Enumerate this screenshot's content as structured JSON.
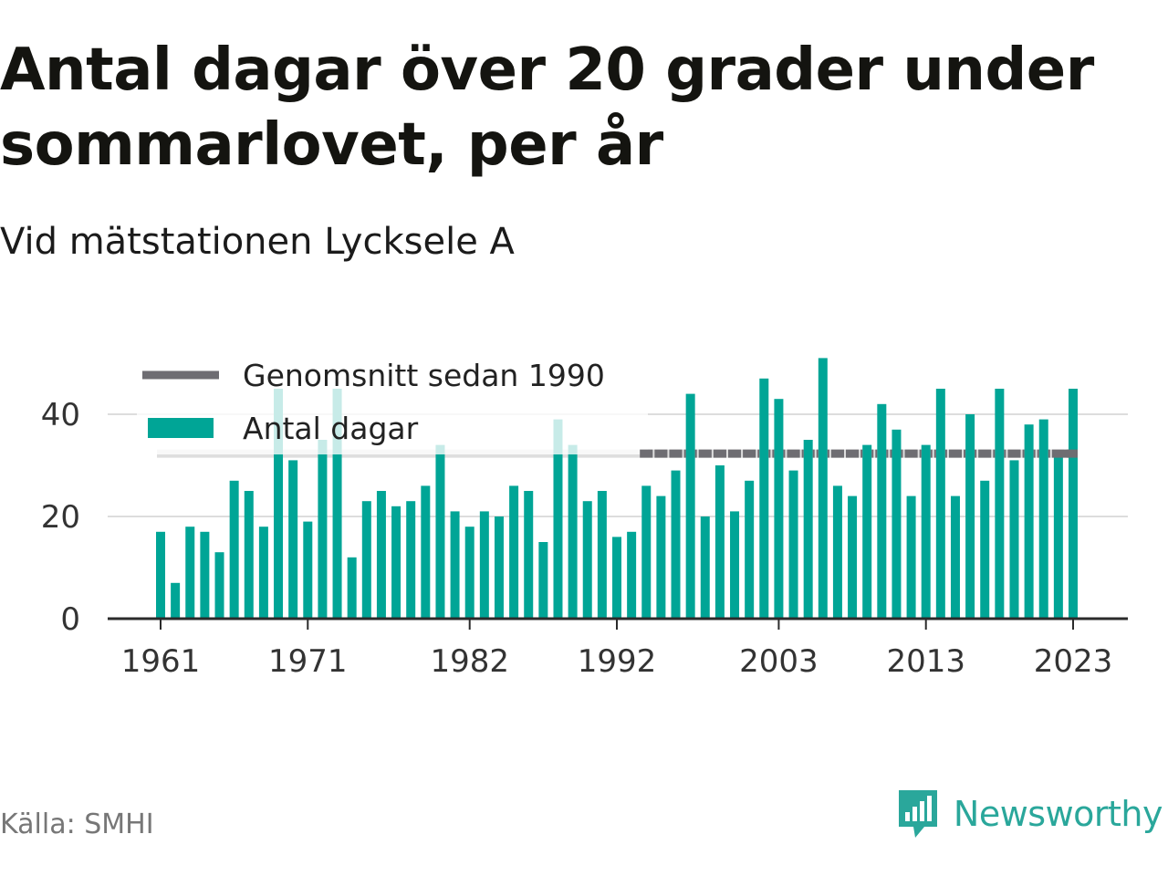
{
  "title": "Antal dagar över 20 grader under sommarlovet, per år",
  "subtitle": "Vid mätstationen Lycksele A",
  "source": "Källa: SMHI",
  "brand": {
    "name": "Newsworthy",
    "logo_icon": "newsworthy-logo-icon",
    "color": "#2aa79b"
  },
  "chart_data": {
    "type": "bar",
    "x_start": 1961,
    "x_end": 2023,
    "x_tick_labels": [
      "1961",
      "1971",
      "1982",
      "1992",
      "2003",
      "2013",
      "2023"
    ],
    "y_tick_labels": [
      "0",
      "20",
      "40"
    ],
    "ylim": [
      0,
      52
    ],
    "grid": true,
    "legend_position": "top-left",
    "series": [
      {
        "name": "Antal dagar",
        "color": "#00a596",
        "categories": [
          "1961",
          "1962",
          "1963",
          "1964",
          "1965",
          "1966",
          "1967",
          "1968",
          "1969",
          "1970",
          "1971",
          "1972",
          "1973",
          "1974",
          "1975",
          "1976",
          "1977",
          "1978",
          "1979",
          "1980",
          "1981",
          "1982",
          "1983",
          "1984",
          "1985",
          "1986",
          "1987",
          "1988",
          "1989",
          "1990",
          "1991",
          "1992",
          "1993",
          "1994",
          "1995",
          "1996",
          "1997",
          "1998",
          "1999",
          "2000",
          "2001",
          "2002",
          "2003",
          "2004",
          "2005",
          "2006",
          "2007",
          "2008",
          "2009",
          "2010",
          "2011",
          "2012",
          "2013",
          "2014",
          "2015",
          "2016",
          "2017",
          "2018",
          "2019",
          "2020",
          "2021",
          "2022",
          "2023"
        ],
        "values": [
          17,
          7,
          18,
          17,
          13,
          27,
          25,
          18,
          45,
          31,
          19,
          35,
          45,
          12,
          23,
          25,
          22,
          23,
          26,
          34,
          21,
          18,
          21,
          20,
          26,
          25,
          15,
          39,
          34,
          23,
          25,
          16,
          17,
          26,
          24,
          29,
          44,
          20,
          30,
          21,
          27,
          47,
          43,
          29,
          35,
          51,
          26,
          24,
          34,
          42,
          37,
          24,
          34,
          45,
          24,
          40,
          27,
          45,
          31,
          38,
          39,
          32,
          45
        ]
      },
      {
        "name": "Genomsnitt sedan 1990",
        "color": "#6e6d72",
        "value": 32.3
      }
    ]
  }
}
